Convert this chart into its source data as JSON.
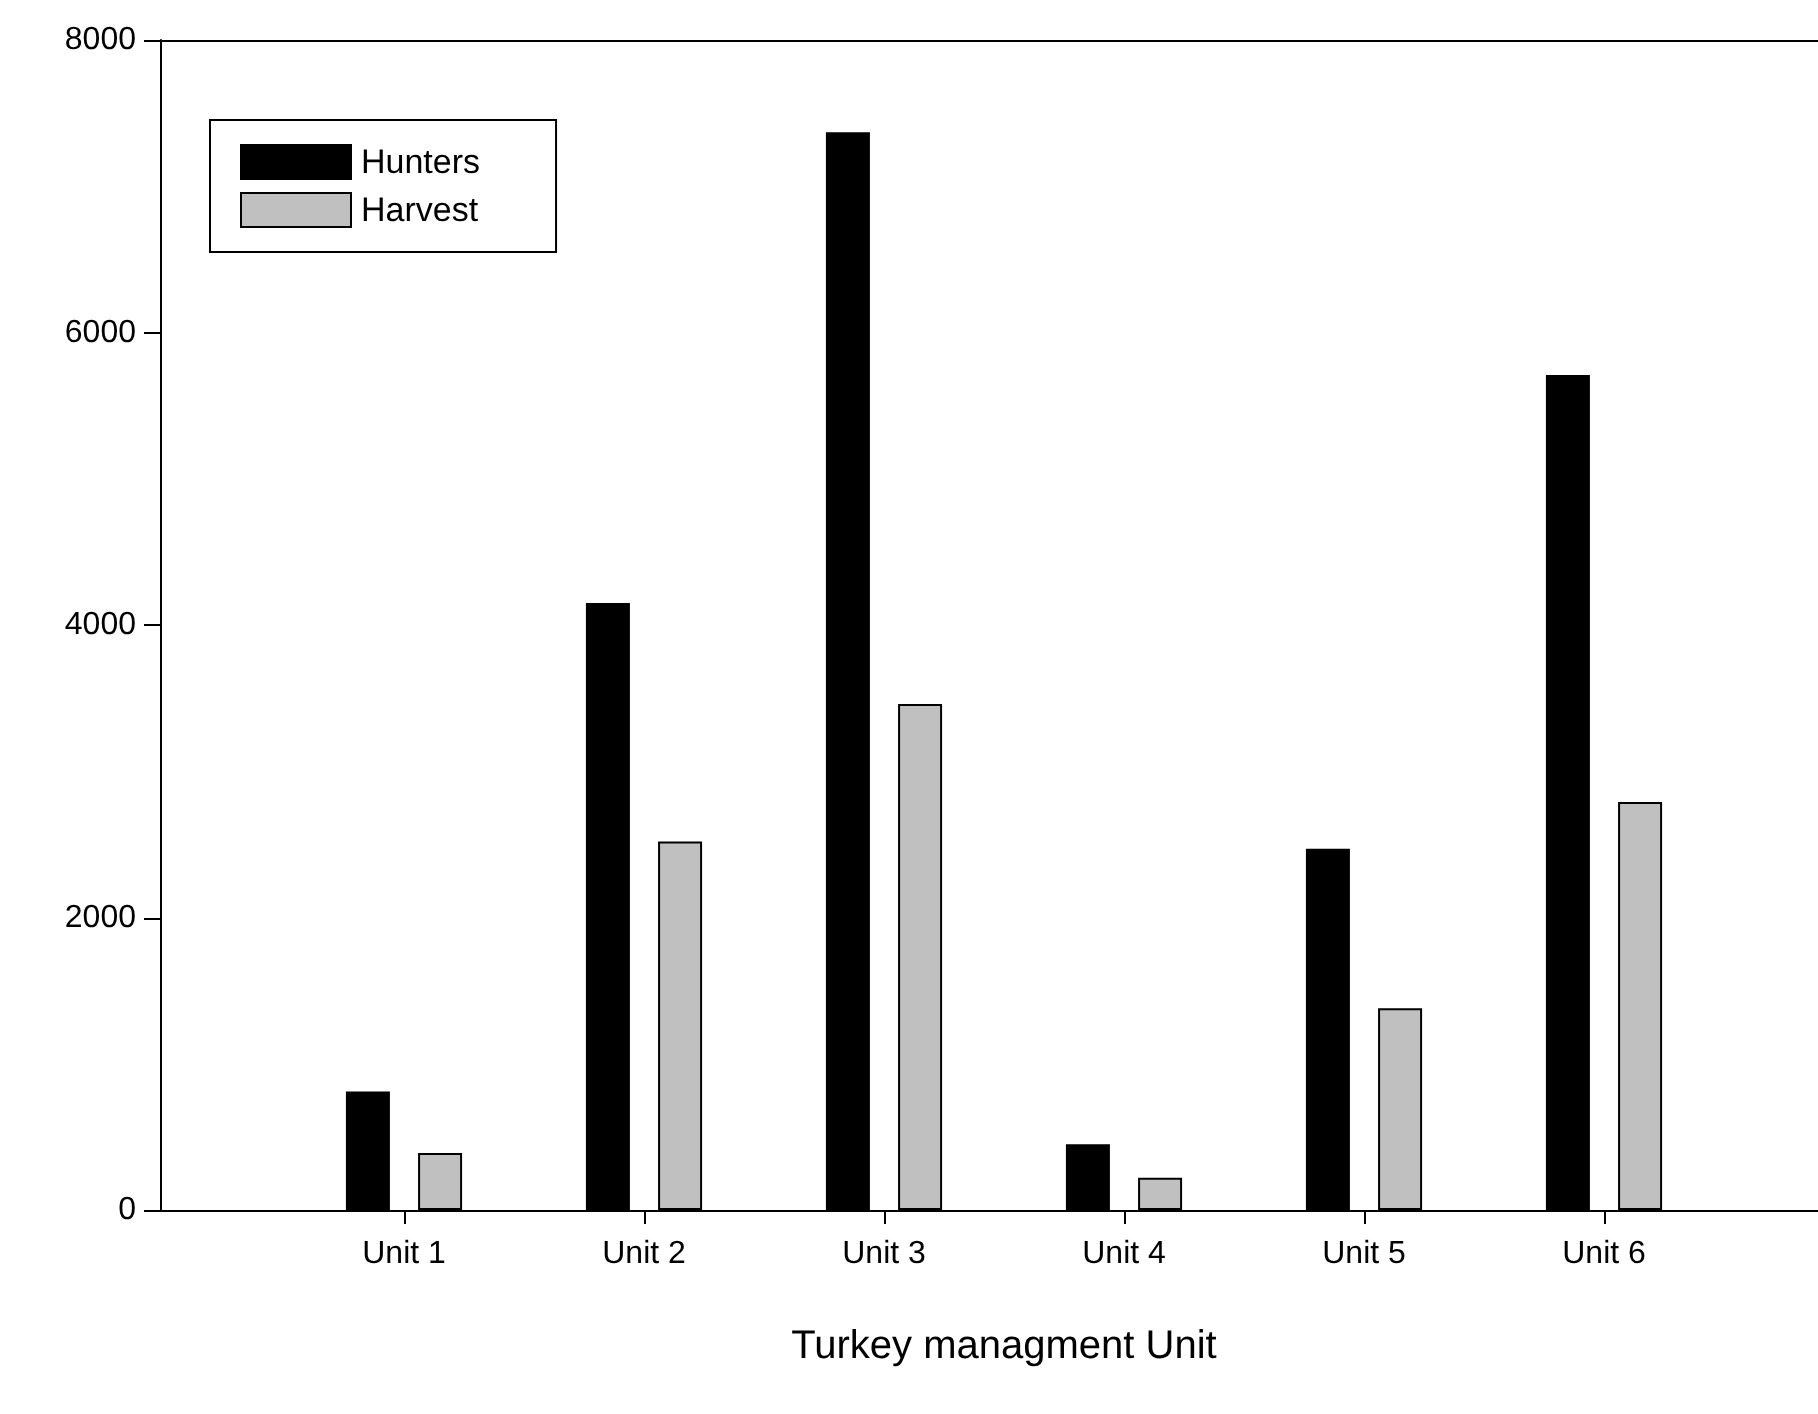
{
  "chart_data": {
    "type": "bar",
    "xlabel": "Turkey managment Unit",
    "categories": [
      "Unit 1",
      "Unit 2",
      "Unit 3",
      "Unit 4",
      "Unit 5",
      "Unit 6"
    ],
    "series": [
      {
        "name": "Hunters",
        "color": "#000000",
        "values": [
          810,
          4150,
          7370,
          450,
          2470,
          5710
        ]
      },
      {
        "name": "Harvest",
        "color": "#c0c0c0",
        "values": [
          390,
          2520,
          3460,
          220,
          1380,
          2790
        ]
      }
    ],
    "ylim": [
      0,
      8000
    ],
    "yticks": [
      0,
      2000,
      4000,
      6000,
      8000
    ],
    "legend": "top left"
  }
}
